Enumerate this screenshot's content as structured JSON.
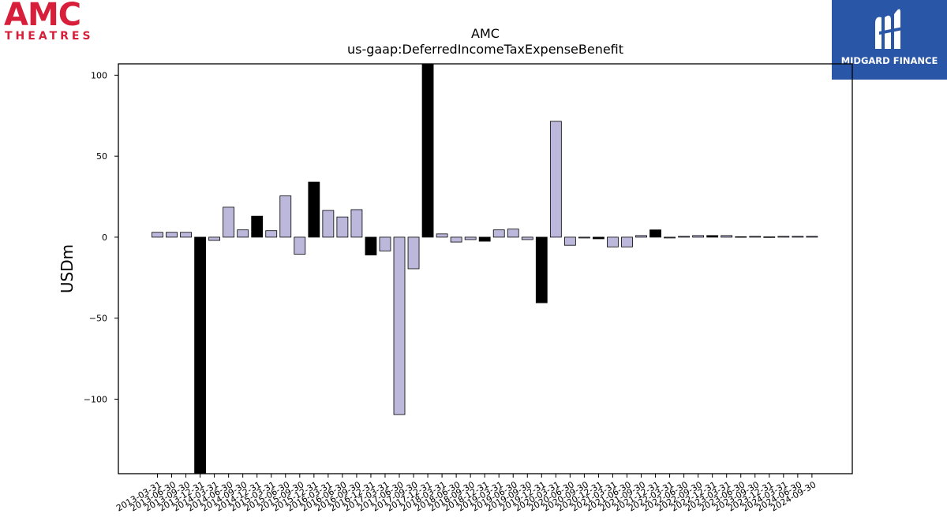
{
  "branding": {
    "left_logo": {
      "wordmark": "AMC",
      "subtitle": "THEATRES",
      "color": "#d71f3b"
    },
    "right_logo": {
      "name": "MIDGARD FINANCE",
      "background": "#2a56a8"
    }
  },
  "chart_data": {
    "type": "bar",
    "title": "AMC",
    "subtitle": "us-gaap:DeferredIncomeTaxExpenseBenefit",
    "ylabel": "USDm",
    "xlabel": "",
    "ylim": [
      -146,
      107
    ],
    "yticks": [
      100,
      50,
      0,
      -50,
      -100
    ],
    "ytick_labels": [
      "100",
      "50",
      "0",
      "−50",
      "−100"
    ],
    "grid": false,
    "colors": {
      "quarter": "#bcb8dc",
      "year_end": "#000000",
      "edge": "#000000"
    },
    "categories": [
      "2013-03-31",
      "2013-06-30",
      "2013-09-30",
      "2013-12-31",
      "2014-03-31",
      "2014-06-30",
      "2014-09-30",
      "2014-12-31",
      "2015-03-31",
      "2015-06-30",
      "2015-09-30",
      "2015-12-31",
      "2016-03-31",
      "2016-06-30",
      "2016-09-30",
      "2016-12-31",
      "2017-03-31",
      "2017-06-30",
      "2017-09-30",
      "2017-12-31",
      "2018-03-31",
      "2018-06-30",
      "2018-09-30",
      "2018-12-31",
      "2019-03-31",
      "2019-06-30",
      "2019-09-30",
      "2019-12-31",
      "2020-03-31",
      "2020-06-30",
      "2020-09-30",
      "2020-12-31",
      "2021-03-31",
      "2021-06-30",
      "2021-09-30",
      "2021-12-31",
      "2022-03-31",
      "2022-06-30",
      "2022-09-30",
      "2022-12-31",
      "2023-03-31",
      "2023-06-30",
      "2023-09-30",
      "2023-12-31",
      "2024-03-31",
      "2024-06-30",
      "2024-09-30"
    ],
    "values": [
      3,
      3,
      3,
      -146,
      -2,
      18.5,
      4.5,
      13,
      4,
      25.5,
      -10.5,
      34,
      16.5,
      12.5,
      17,
      -11,
      -8.5,
      -109.5,
      -19.5,
      107,
      2,
      -3,
      -1.5,
      -2.5,
      4.5,
      5,
      -1.5,
      -40.5,
      71.5,
      -5,
      -0.5,
      -1,
      -6,
      -6,
      1,
      4.5,
      -0.5,
      0.5,
      1,
      1,
      1,
      0.3,
      0.5,
      0.2,
      0.5,
      0.5,
      0.5
    ],
    "year_end_flags": [
      false,
      false,
      false,
      true,
      false,
      false,
      false,
      true,
      false,
      false,
      false,
      true,
      false,
      false,
      false,
      true,
      false,
      false,
      false,
      true,
      false,
      false,
      false,
      true,
      false,
      false,
      false,
      true,
      false,
      false,
      false,
      true,
      false,
      false,
      false,
      true,
      false,
      false,
      false,
      true,
      false,
      false,
      false,
      true,
      false,
      false,
      false
    ]
  }
}
